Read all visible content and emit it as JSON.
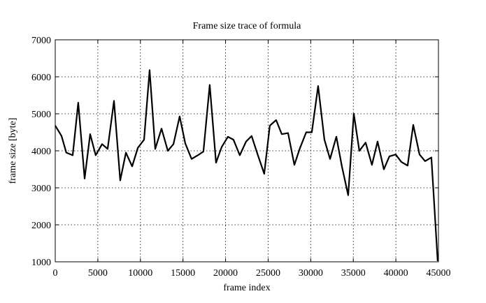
{
  "chart_data": {
    "type": "line",
    "title": "Frame size trace of formula",
    "x_label": "frame index",
    "y_label": "frame size [byte]",
    "series": [
      {
        "color": "#000000",
        "x": [
          0,
          740,
          1300,
          2050,
          2700,
          3450,
          4100,
          4750,
          5500,
          6150,
          6900,
          7630,
          8300,
          9030,
          9700,
          10430,
          11080,
          11740,
          12480,
          13220,
          13880,
          14610,
          15270,
          16010,
          16750,
          17400,
          18140,
          18880,
          19540,
          20280,
          20930,
          21670,
          22410,
          23060,
          23800,
          24540,
          25200,
          25940,
          26600,
          27340,
          28080,
          28730,
          29470,
          30130,
          30870,
          31610,
          32270,
          33010,
          33660,
          34400,
          35060,
          35710,
          36450,
          37190,
          37850,
          38590,
          39240,
          39980,
          40640,
          41380,
          42040,
          42780,
          43430,
          44170,
          44910
        ],
        "values": [
          4680,
          4400,
          3950,
          3880,
          5300,
          3250,
          4450,
          3880,
          4180,
          4050,
          5350,
          3200,
          3950,
          3580,
          4080,
          4300,
          6180,
          4050,
          4600,
          4000,
          4180,
          4930,
          4200,
          3780,
          3880,
          3980,
          5780,
          3680,
          4100,
          4380,
          4300,
          3880,
          4250,
          4400,
          3880,
          3380,
          4680,
          4830,
          4450,
          4480,
          3620,
          4070,
          4500,
          4500,
          5750,
          4300,
          3780,
          4380,
          3580,
          2800,
          5000,
          4000,
          4220,
          3620,
          4250,
          3500,
          3850,
          3900,
          3700,
          3600,
          4700,
          3900,
          3720,
          3820,
          1020
        ]
      }
    ],
    "xlim": [
      0,
      45000
    ],
    "xticks": [
      0,
      5000,
      10000,
      15000,
      20000,
      25000,
      30000,
      35000,
      40000,
      45000
    ],
    "ylim": [
      1000,
      7000
    ],
    "yticks": [
      1000,
      2000,
      3000,
      4000,
      5000,
      6000,
      7000
    ],
    "grid": true
  }
}
